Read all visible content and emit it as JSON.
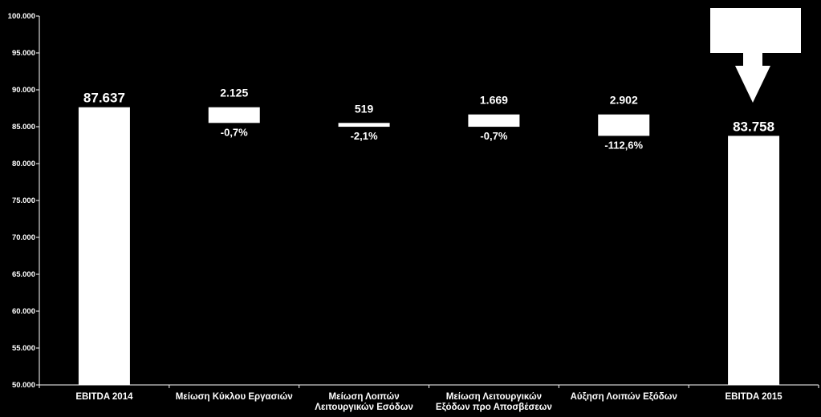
{
  "chart_data": {
    "type": "bar",
    "subtype": "waterfall",
    "title": "",
    "xlabel": "",
    "ylabel": "",
    "ylim": [
      50000,
      100000
    ],
    "yticks": [
      "50.000",
      "55.000",
      "60.000",
      "65.000",
      "70.000",
      "75.000",
      "80.000",
      "85.000",
      "90.000",
      "95.000",
      "100.000"
    ],
    "grid": false,
    "categories": [
      {
        "label": [
          "EBITDA 2014"
        ],
        "kind": "total",
        "bottom": 50000,
        "top": 87637,
        "value_label": "87.637",
        "pct_label": ""
      },
      {
        "label": [
          "Μείωση Κύκλου Εργασιών"
        ],
        "kind": "step",
        "bottom": 85512,
        "top": 87637,
        "value_label": "2.125",
        "pct_label": "-0,7%"
      },
      {
        "label": [
          "Μείωση Λοιπών",
          "Λειτουργικών Εσόδων"
        ],
        "kind": "step",
        "bottom": 84993,
        "top": 85512,
        "value_label": "519",
        "pct_label": "-2,1%"
      },
      {
        "label": [
          "Μείωση Λειτουργικών",
          "Εξόδων προ Αποσβέσεων"
        ],
        "kind": "step",
        "bottom": 84993,
        "top": 86662,
        "value_label": "1.669",
        "pct_label": "-0,7%"
      },
      {
        "label": [
          "Αύξηση Λοιπών Εξόδων"
        ],
        "kind": "step",
        "bottom": 83760,
        "top": 86662,
        "value_label": "2.902",
        "pct_label": "-112,6%"
      },
      {
        "label": [
          "EBITDA 2015"
        ],
        "kind": "total",
        "bottom": 50000,
        "top": 83758,
        "value_label": "83.758",
        "pct_label": ""
      }
    ],
    "colors": {
      "background": "#000000",
      "bars": "#ffffff",
      "text": "#ffffff",
      "axis": "#ffffff"
    }
  }
}
